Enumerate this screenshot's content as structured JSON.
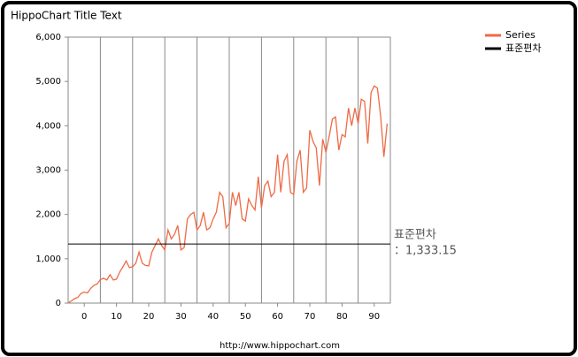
{
  "chart_data": {
    "type": "line",
    "title": "HippoChart Title Text",
    "footer": "http://www.hippochart.com",
    "x": [
      -5,
      -4,
      -3,
      -2,
      -1,
      0,
      1,
      2,
      3,
      4,
      5,
      6,
      7,
      8,
      9,
      10,
      11,
      12,
      13,
      14,
      15,
      16,
      17,
      18,
      19,
      20,
      21,
      22,
      23,
      24,
      25,
      26,
      27,
      28,
      29,
      30,
      31,
      32,
      33,
      34,
      35,
      36,
      37,
      38,
      39,
      40,
      41,
      42,
      43,
      44,
      45,
      46,
      47,
      48,
      49,
      50,
      51,
      52,
      53,
      54,
      55,
      56,
      57,
      58,
      59,
      60,
      61,
      62,
      63,
      64,
      65,
      66,
      67,
      68,
      69,
      70,
      71,
      72,
      73,
      74,
      75,
      76,
      77,
      78,
      79,
      80,
      81,
      82,
      83,
      84,
      85,
      86,
      87,
      88,
      89,
      90,
      91,
      92,
      93,
      94
    ],
    "series": [
      {
        "name": "Series",
        "color": "#ef6a45",
        "values": [
          0,
          50,
          100,
          130,
          220,
          250,
          230,
          330,
          400,
          430,
          530,
          560,
          520,
          640,
          520,
          540,
          700,
          820,
          950,
          800,
          820,
          900,
          1150,
          900,
          850,
          840,
          1150,
          1300,
          1450,
          1300,
          1200,
          1650,
          1450,
          1550,
          1750,
          1200,
          1250,
          1900,
          2000,
          2050,
          1650,
          1750,
          2050,
          1650,
          1700,
          1900,
          2050,
          2500,
          2400,
          1700,
          1800,
          2500,
          2200,
          2500,
          1900,
          1850,
          2350,
          2200,
          2100,
          2850,
          2150,
          2650,
          2750,
          2400,
          2500,
          3350,
          2500,
          3200,
          3350,
          2500,
          2450,
          3200,
          3450,
          2500,
          2600,
          3900,
          3650,
          3500,
          2650,
          3700,
          3400,
          3750,
          4150,
          4200,
          3450,
          3800,
          3750,
          4400,
          4000,
          4400,
          4050,
          4600,
          4550,
          3600,
          4750,
          4900,
          4850,
          4200,
          3300,
          4050
        ]
      }
    ],
    "std_line": {
      "name": "표준편차",
      "value": 1333.15,
      "label": "：1,333.15",
      "color": "#000000"
    },
    "xlim": [
      -5,
      95
    ],
    "ylim": [
      0,
      6000
    ],
    "xticks": [
      0,
      10,
      20,
      30,
      40,
      50,
      60,
      70,
      80,
      90
    ],
    "xgrid": [
      5,
      15,
      25,
      35,
      45,
      55,
      65,
      75,
      85
    ],
    "yticks": [
      0,
      {
        "value": 1000,
        "label": "1,000"
      },
      {
        "value": 2000,
        "label": "2,000"
      },
      {
        "value": 3000,
        "label": "3,000"
      },
      {
        "value": 4000,
        "label": "4,000"
      },
      {
        "value": 5000,
        "label": "5,000"
      },
      {
        "value": 6000,
        "label": "6,000"
      }
    ]
  }
}
